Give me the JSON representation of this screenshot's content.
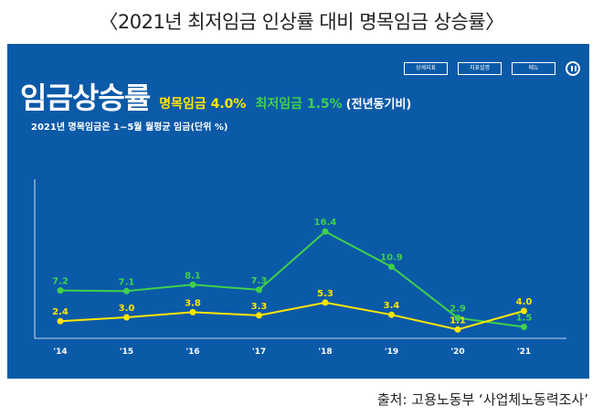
{
  "page_title": "〈2021년 최저임금 인상률 대비 명목임금 상승률〉",
  "source": "출처: 고용노동부 ‘사업체노동력조사’",
  "buttons": [
    "상세지표",
    "지표설명",
    "메뉴"
  ],
  "headline": {
    "title": "임금상승률",
    "nominal": "명목임금 4.0%",
    "minimum": "최저임금 1.5%",
    "paren": "(전년동기비)"
  },
  "note": "2021년 명목임금은 1~5월 월평균 임금(단위 %)",
  "colors": {
    "panel": "#0b5aa8",
    "nominal": "#ffe600",
    "minimum": "#3fd14a",
    "axis": "#ffffff"
  },
  "chart_data": {
    "type": "line",
    "categories": [
      "'14",
      "'15",
      "'16",
      "'17",
      "'18",
      "'19",
      "'20",
      "'21"
    ],
    "series": [
      {
        "name": "최저임금",
        "values": [
          7.2,
          7.1,
          8.1,
          7.3,
          16.4,
          10.9,
          2.9,
          1.5
        ],
        "labels": [
          "7.2",
          "7.1",
          "8.1",
          "7.3",
          "16.4",
          "10.9",
          "2.9",
          "1.5"
        ]
      },
      {
        "name": "명목임금",
        "values": [
          2.4,
          3.0,
          3.8,
          3.3,
          5.3,
          3.4,
          1.1,
          4.0
        ],
        "labels": [
          "2.4",
          "3.0",
          "3.8",
          "3.3",
          "5.3",
          "3.4",
          "1.1",
          "4.0"
        ]
      }
    ],
    "ylim": [
      0,
      25
    ],
    "grid": false
  }
}
